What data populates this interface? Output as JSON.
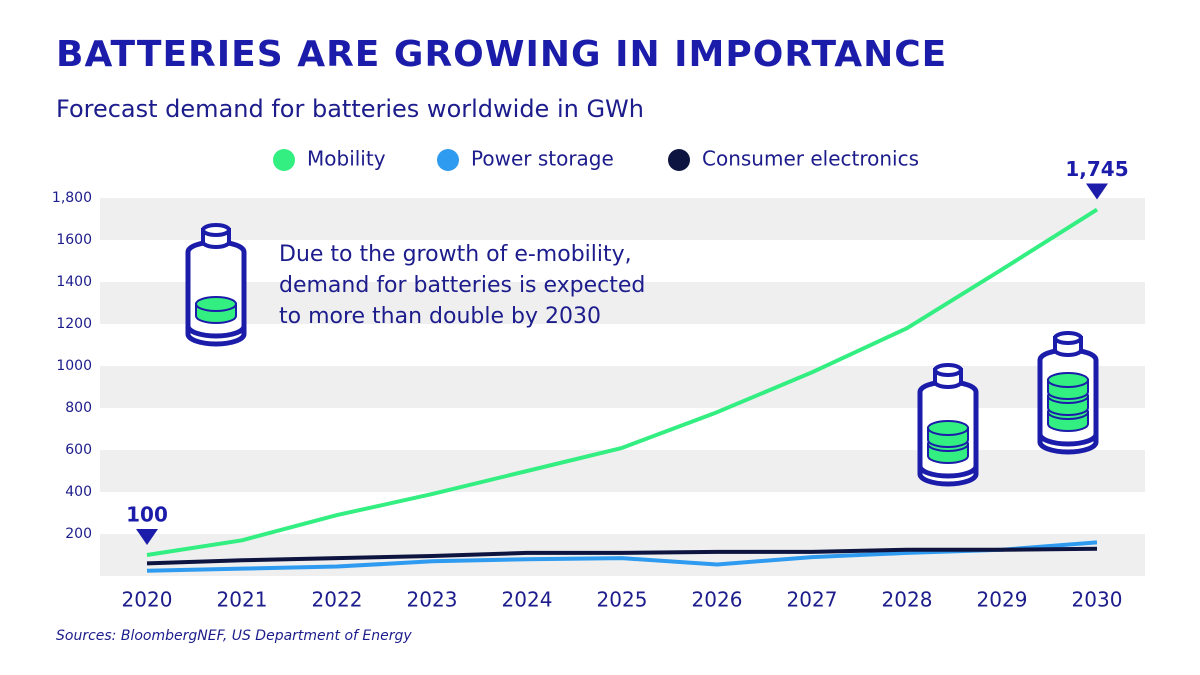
{
  "chart_data": {
    "type": "line",
    "title": "BATTERIES ARE GROWING IN IMPORTANCE",
    "subtitle": "Forecast demand for batteries worldwide in GWh",
    "categories": [
      "2020",
      "2021",
      "2022",
      "2023",
      "2024",
      "2025",
      "2026",
      "2027",
      "2028",
      "2029",
      "2030"
    ],
    "series": [
      {
        "name": "Mobility",
        "color": "#33ee80",
        "values": [
          100,
          170,
          290,
          390,
          500,
          610,
          780,
          970,
          1180,
          1460,
          1745
        ],
        "value_labels": [
          "100",
          null,
          null,
          null,
          null,
          null,
          null,
          null,
          null,
          null,
          "1,745"
        ]
      },
      {
        "name": "Power storage",
        "color": "#2e9bf0",
        "values": [
          25,
          35,
          45,
          70,
          80,
          85,
          55,
          90,
          110,
          125,
          160
        ]
      },
      {
        "name": "Consumer electronics",
        "color": "#0d1440",
        "values": [
          60,
          75,
          85,
          95,
          110,
          110,
          115,
          115,
          125,
          125,
          130
        ]
      }
    ],
    "ylim": [
      0,
      1800
    ],
    "yticks": [
      200,
      400,
      600,
      800,
      1000,
      1200,
      1400,
      1600,
      {
        "value": 1800,
        "label": "1,800"
      }
    ],
    "annotation": [
      "Due to the growth of e-mobility,",
      "demand for batteries is expected",
      "to more than double by 2030"
    ],
    "source": "Sources: BloombergNEF, US Department of Energy"
  }
}
